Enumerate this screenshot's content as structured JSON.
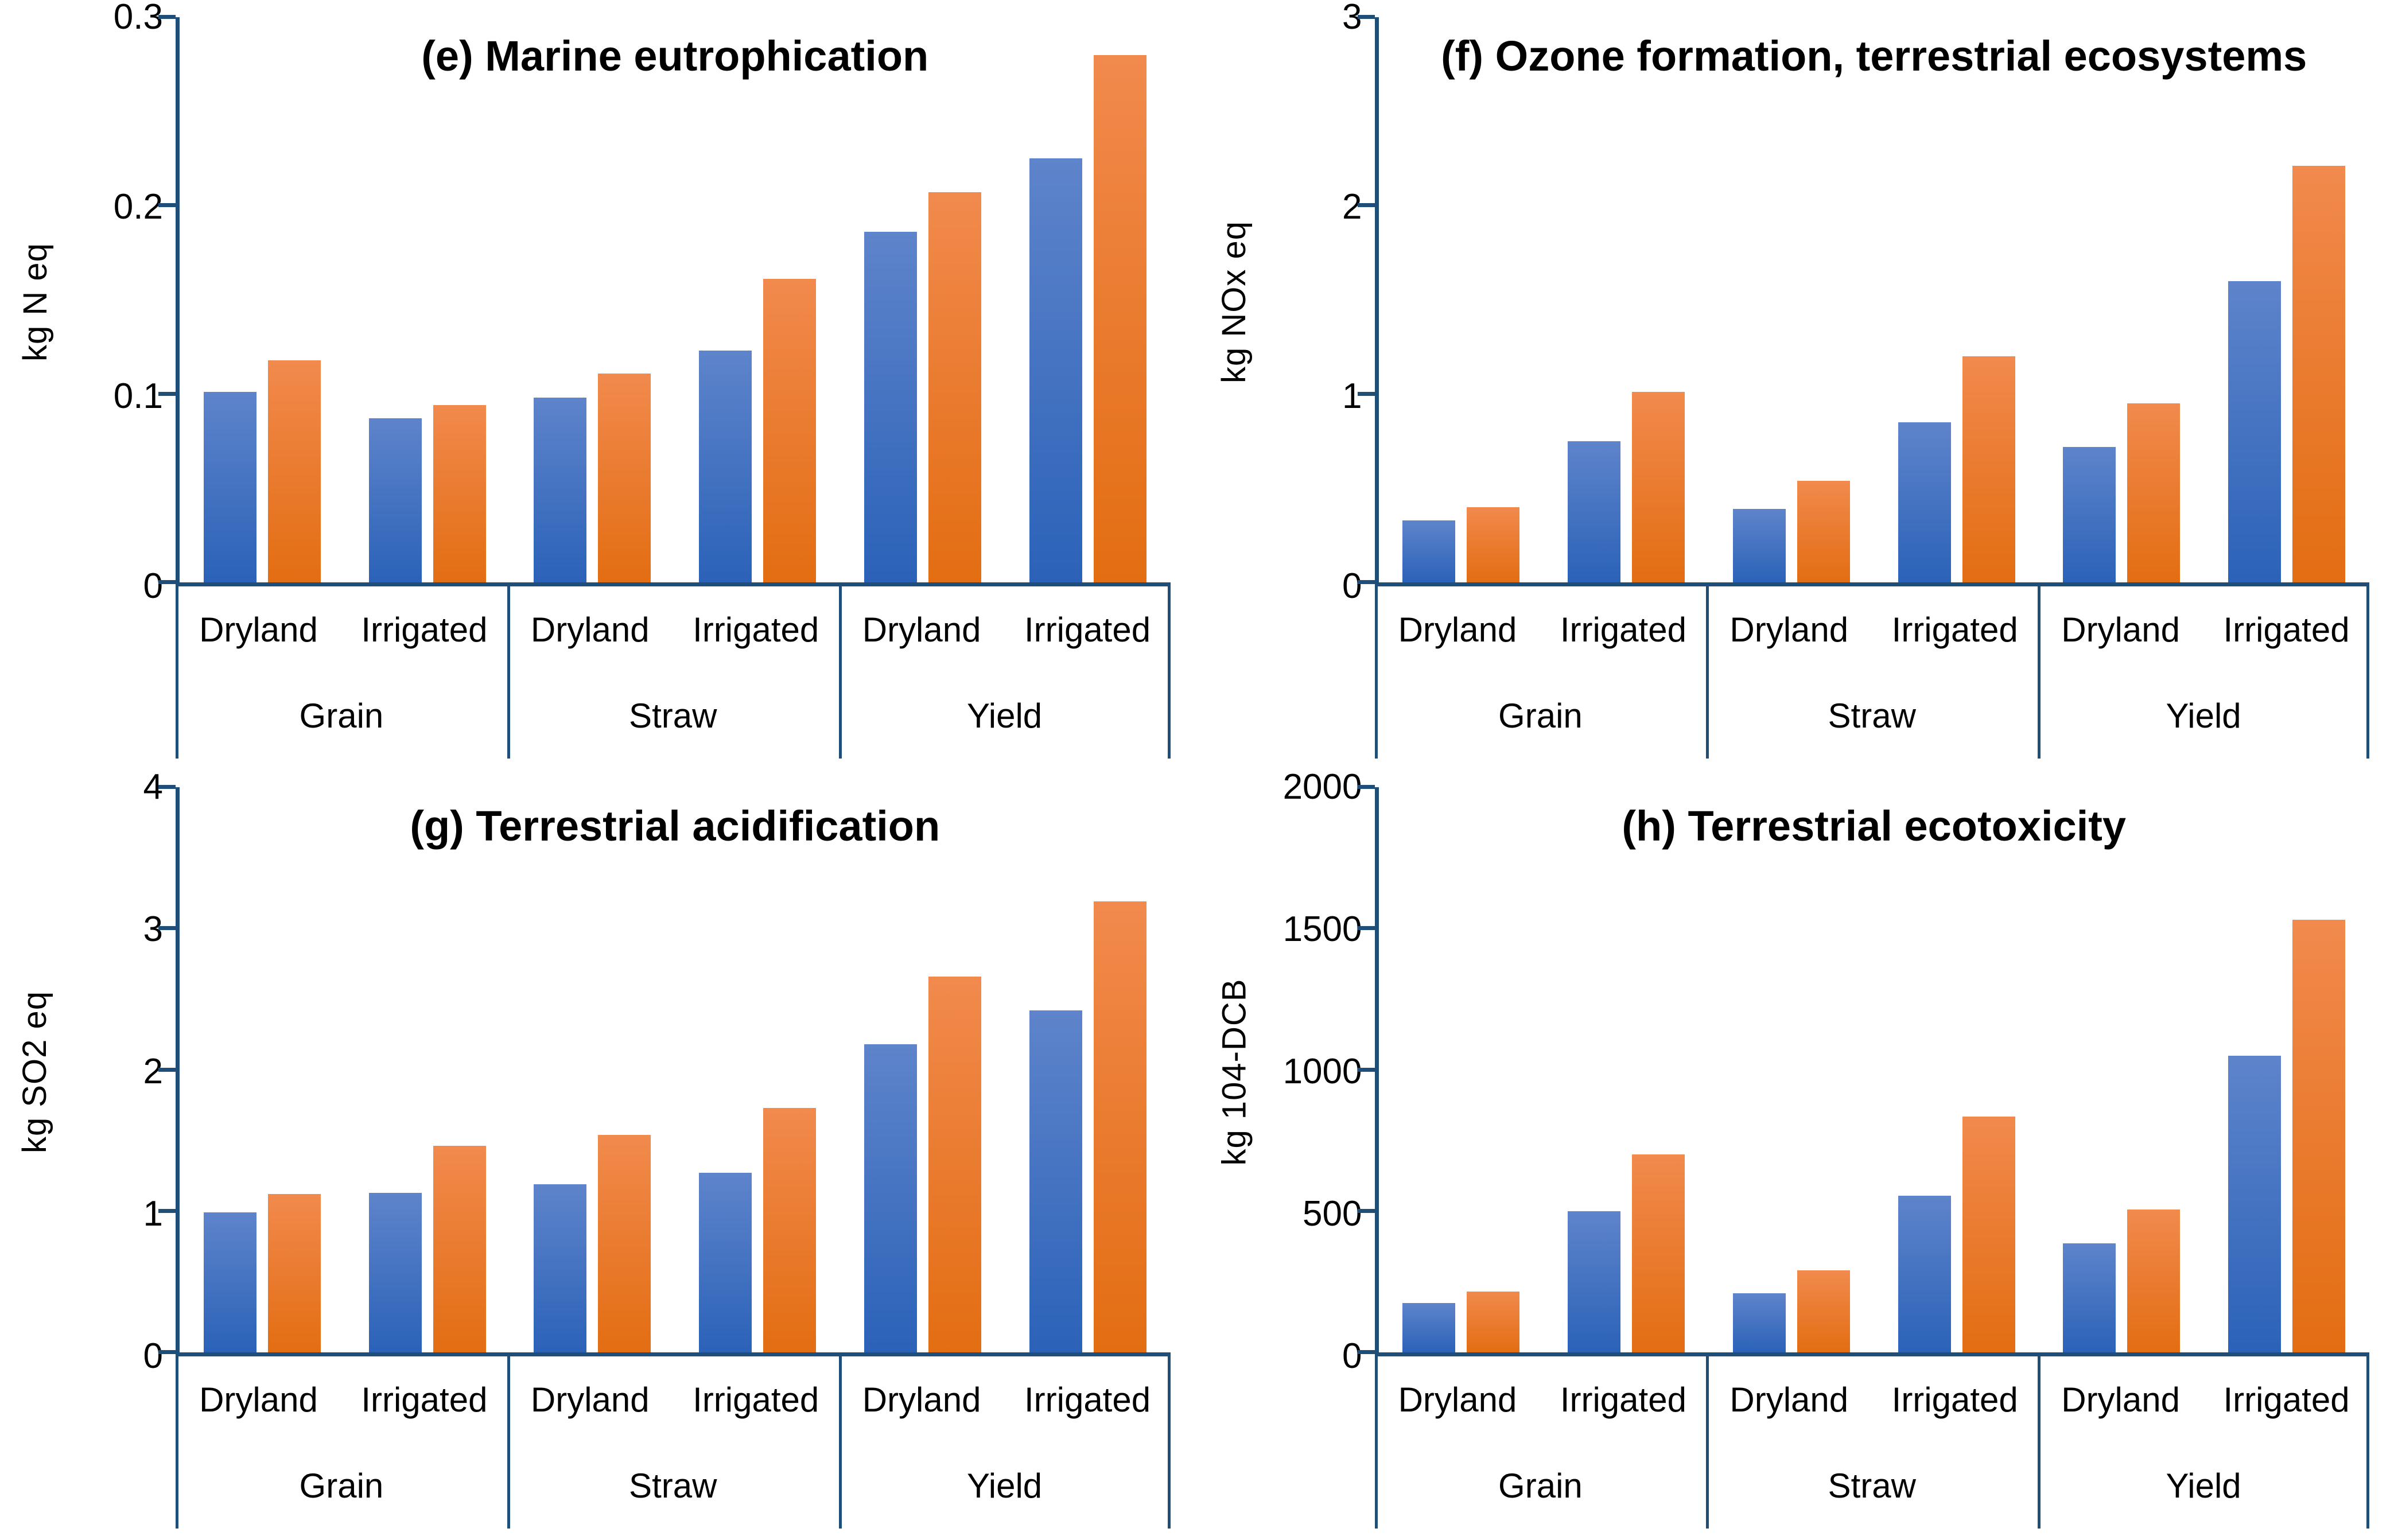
{
  "figure": {
    "background": "#FFFFFF",
    "colors": {
      "axis": "#1F4E79",
      "series_blue_top": "#5E84CB",
      "series_blue_bottom": "#2B62B8",
      "series_orange_top": "#F18A4D",
      "series_orange_bottom": "#E36D12"
    }
  },
  "chart_data": [
    {
      "type": "bar",
      "title": "(e) Marine eutrophication",
      "ylabel": "kg N eq",
      "ylim": [
        0,
        0.3
      ],
      "ytick_values": [
        0,
        0.1,
        0.2,
        0.3
      ],
      "yticks": [
        "0",
        "0.1",
        "0.2",
        "0.3"
      ],
      "grid": "off",
      "legend": "none",
      "categories": [
        "Grain",
        "Straw",
        "Yield"
      ],
      "subcategories": [
        "Dryland",
        "Irrigated"
      ],
      "series": [
        {
          "name": "blue",
          "values": [
            0.101,
            0.087,
            0.098,
            0.123,
            0.186,
            0.225
          ]
        },
        {
          "name": "orange",
          "values": [
            0.118,
            0.094,
            0.111,
            0.161,
            0.207,
            0.28
          ]
        }
      ]
    },
    {
      "type": "bar",
      "title": "(f) Ozone formation, terrestrial ecosystems",
      "ylabel": "kg NOx eq",
      "ylim": [
        0,
        3
      ],
      "ytick_values": [
        0,
        1,
        2,
        3
      ],
      "yticks": [
        "0",
        "1",
        "2",
        "3"
      ],
      "grid": "off",
      "legend": "none",
      "categories": [
        "Grain",
        "Straw",
        "Yield"
      ],
      "subcategories": [
        "Dryland",
        "Irrigated"
      ],
      "series": [
        {
          "name": "blue",
          "values": [
            0.33,
            0.75,
            0.39,
            0.85,
            0.72,
            1.6
          ]
        },
        {
          "name": "orange",
          "values": [
            0.4,
            1.01,
            0.54,
            1.2,
            0.95,
            2.21
          ]
        }
      ]
    },
    {
      "type": "bar",
      "title": "(g) Terrestrial acidification",
      "ylabel": "kg SO2 eq",
      "ylim": [
        0,
        4
      ],
      "ytick_values": [
        0,
        1,
        2,
        3,
        4
      ],
      "yticks": [
        "0",
        "1",
        "2",
        "3",
        "4"
      ],
      "grid": "off",
      "legend": "none",
      "categories": [
        "Grain",
        "Straw",
        "Yield"
      ],
      "subcategories": [
        "Dryland",
        "Irrigated"
      ],
      "series": [
        {
          "name": "blue",
          "values": [
            0.99,
            1.13,
            1.19,
            1.27,
            2.18,
            2.42
          ]
        },
        {
          "name": "orange",
          "values": [
            1.12,
            1.46,
            1.54,
            1.73,
            2.66,
            3.19
          ]
        }
      ]
    },
    {
      "type": "bar",
      "title": "(h) Terrestrial ecotoxicity",
      "ylabel": "kg 104-DCB",
      "ylim": [
        0,
        2000
      ],
      "ytick_values": [
        0,
        500,
        1000,
        1500,
        2000
      ],
      "yticks": [
        "0",
        "500",
        "1000",
        "1500",
        "2000"
      ],
      "grid": "off",
      "legend": "none",
      "categories": [
        "Grain",
        "Straw",
        "Yield"
      ],
      "subcategories": [
        "Dryland",
        "Irrigated"
      ],
      "series": [
        {
          "name": "blue",
          "values": [
            175,
            500,
            210,
            555,
            385,
            1050
          ]
        },
        {
          "name": "orange",
          "values": [
            215,
            700,
            290,
            835,
            505,
            1530
          ]
        }
      ]
    }
  ]
}
